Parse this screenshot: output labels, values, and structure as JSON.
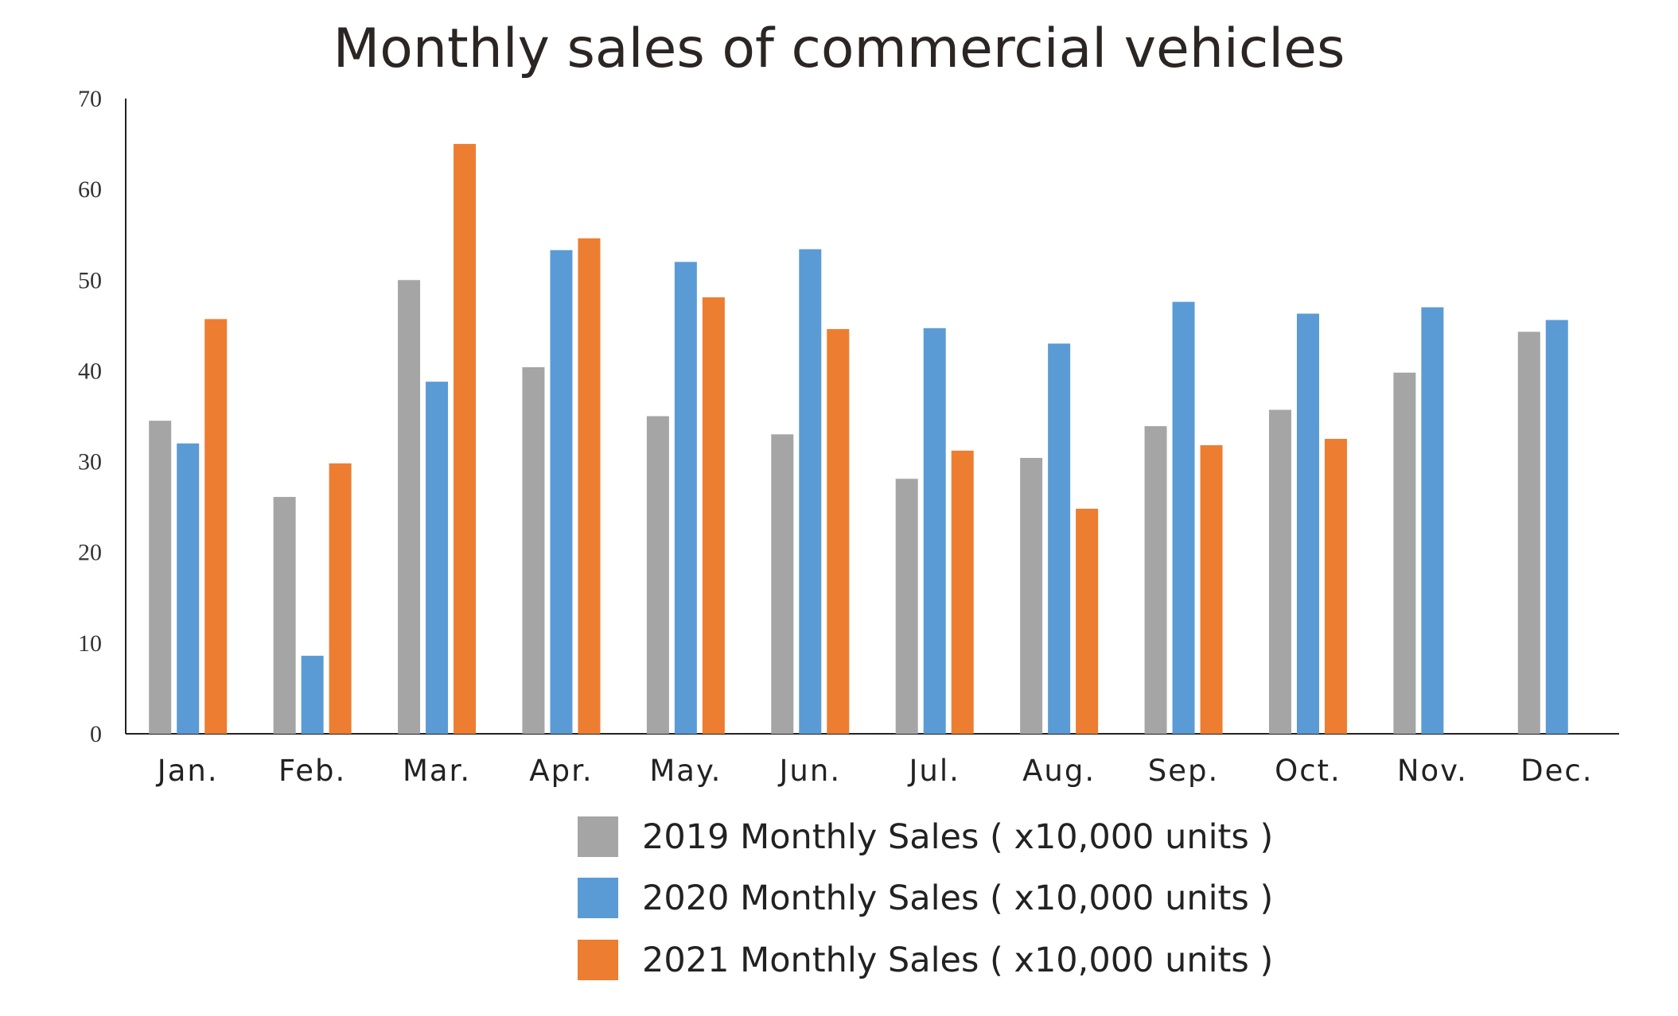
{
  "chart_data": {
    "type": "bar",
    "title": "Monthly sales of commercial vehicles",
    "xlabel": "",
    "ylabel": "",
    "ylim": [
      0,
      70
    ],
    "yticks": [
      0,
      10,
      20,
      30,
      40,
      50,
      60,
      70
    ],
    "grid": false,
    "legend_position": "bottom",
    "categories": [
      "Jan.",
      "Feb.",
      "Mar.",
      "Apr.",
      "May.",
      "Jun.",
      "Jul.",
      "Aug.",
      "Sep.",
      "Oct.",
      "Nov.",
      "Dec."
    ],
    "series": [
      {
        "name": "2019 Monthly Sales ( x10,000 units )",
        "color": "#a5a5a5",
        "values": [
          34.5,
          26.1,
          50.0,
          40.4,
          35.0,
          33.0,
          28.1,
          30.4,
          33.9,
          35.7,
          39.8,
          44.3
        ]
      },
      {
        "name": "2020 Monthly Sales ( x10,000 units )",
        "color": "#5b9bd5",
        "values": [
          32.0,
          8.6,
          38.8,
          53.3,
          52.0,
          53.4,
          44.7,
          43.0,
          47.6,
          46.3,
          47.0,
          45.6
        ]
      },
      {
        "name": "2021 Monthly Sales ( x10,000 units )",
        "color": "#ed7d31",
        "values": [
          45.7,
          29.8,
          65.0,
          54.6,
          48.1,
          44.6,
          31.2,
          24.8,
          31.8,
          32.5,
          null,
          null
        ]
      }
    ]
  }
}
